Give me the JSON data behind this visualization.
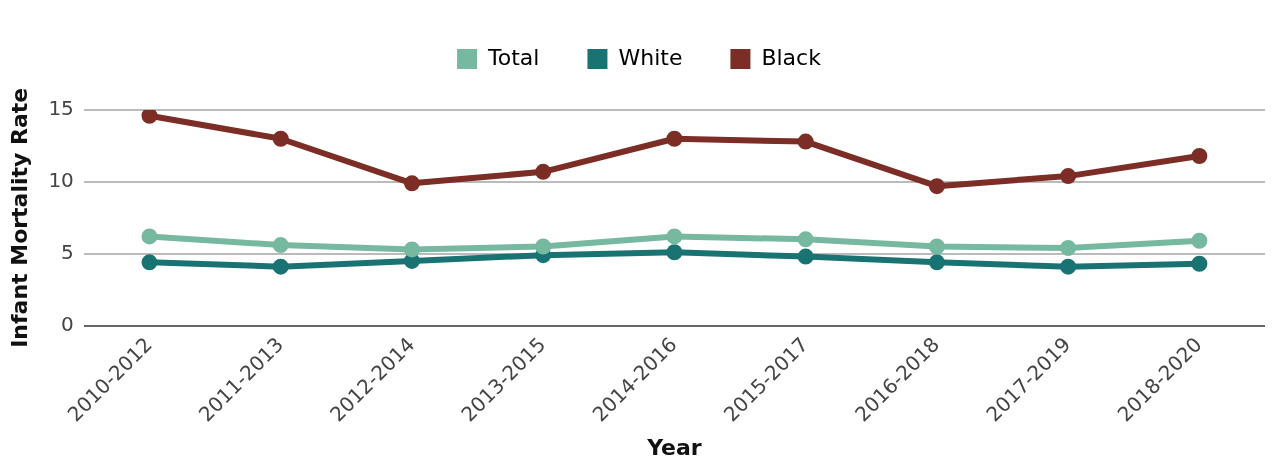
{
  "chart_data": {
    "type": "line",
    "xlabel": "Year",
    "ylabel": "Infant Mortality Rate",
    "categories": [
      "2010-2012",
      "2011-2013",
      "2012-2014",
      "2013-2015",
      "2014-2016",
      "2015-2017",
      "2016-2018",
      "2017-2019",
      "2018-2020"
    ],
    "series": [
      {
        "name": "Total",
        "color": "#76b9a0",
        "values": [
          6.2,
          5.6,
          5.3,
          5.5,
          6.2,
          6.0,
          5.5,
          5.4,
          5.9
        ]
      },
      {
        "name": "White",
        "color": "#1a7373",
        "values": [
          4.4,
          4.1,
          4.5,
          4.9,
          5.1,
          4.8,
          4.4,
          4.1,
          4.3
        ]
      },
      {
        "name": "Black",
        "color": "#7b2d26",
        "values": [
          14.6,
          13.0,
          9.9,
          10.7,
          13.0,
          12.8,
          9.7,
          10.4,
          11.8
        ]
      }
    ],
    "ylim": [
      0,
      15
    ],
    "yticks": [
      0,
      5,
      10,
      15
    ],
    "grid": "y",
    "legend": "top",
    "marker": "circle",
    "line_style": "solid"
  }
}
